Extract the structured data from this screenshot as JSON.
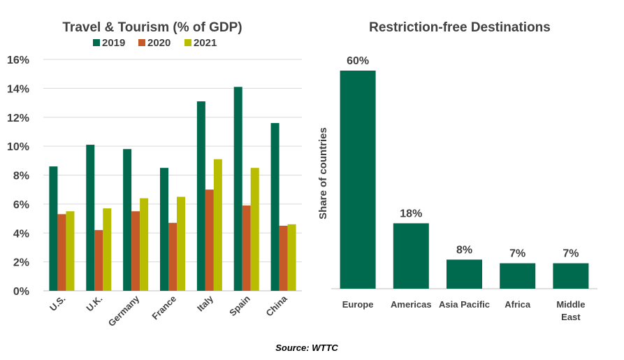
{
  "chart_data": [
    {
      "type": "bar",
      "title": "Travel & Tourism (% of GDP)",
      "categories": [
        "U.S.",
        "U.K.",
        "Germany",
        "France",
        "Italy",
        "Spain",
        "China"
      ],
      "series": [
        {
          "name": "2019",
          "color": "#006a4e",
          "values": [
            8.6,
            10.1,
            9.8,
            8.5,
            13.1,
            14.1,
            11.6
          ]
        },
        {
          "name": "2020",
          "color": "#c55a28",
          "values": [
            5.3,
            4.2,
            5.5,
            4.7,
            7.0,
            5.9,
            4.5
          ]
        },
        {
          "name": "2021",
          "color": "#b8bd00",
          "values": [
            5.5,
            5.7,
            6.4,
            6.5,
            9.1,
            8.5,
            4.6
          ]
        }
      ],
      "ylim": [
        0,
        16
      ],
      "yticks": [
        "0%",
        "2%",
        "4%",
        "6%",
        "8%",
        "10%",
        "12%",
        "14%",
        "16%"
      ],
      "legend": "top",
      "grid": true
    },
    {
      "type": "bar",
      "title": "Restriction-free Destinations",
      "ylabel": "Share of countries",
      "categories": [
        "Europe",
        "Americas",
        "Asia Pacific",
        "Africa",
        "Middle East"
      ],
      "values": [
        60,
        18,
        8,
        7,
        7
      ],
      "data_labels": [
        "60%",
        "18%",
        "8%",
        "7%",
        "7%"
      ],
      "color": "#006a4e",
      "ylim": [
        0,
        60
      ],
      "grid": false
    }
  ],
  "source": "Source: WTTC"
}
